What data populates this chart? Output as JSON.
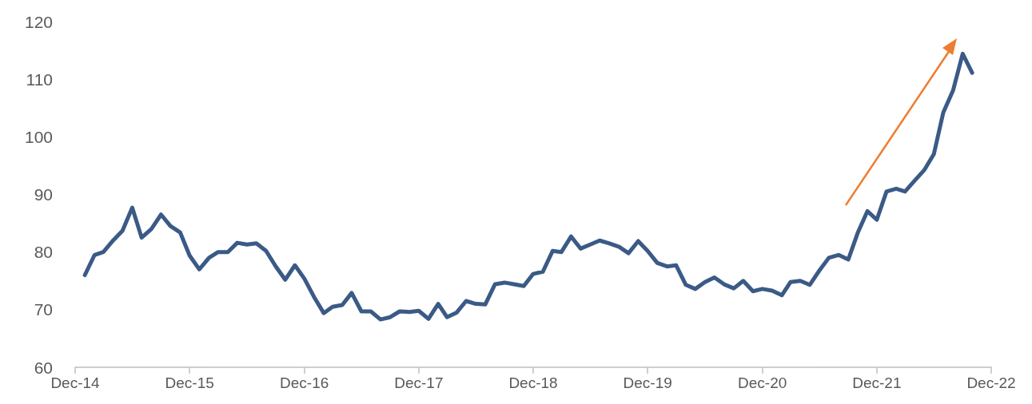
{
  "chart_data": {
    "type": "line",
    "xlim": [
      "2014-12",
      "2022-12"
    ],
    "xticks": [
      {
        "value": "2014-12",
        "label": "Dec-14"
      },
      {
        "value": "2015-12",
        "label": "Dec-15"
      },
      {
        "value": "2016-12",
        "label": "Dec-16"
      },
      {
        "value": "2017-12",
        "label": "Dec-17"
      },
      {
        "value": "2018-12",
        "label": "Dec-18"
      },
      {
        "value": "2019-12",
        "label": "Dec-19"
      },
      {
        "value": "2020-12",
        "label": "Dec-20"
      },
      {
        "value": "2021-12",
        "label": "Dec-21"
      },
      {
        "value": "2022-12",
        "label": "Dec-22"
      }
    ],
    "ylim": [
      60,
      120
    ],
    "yticks": [
      60,
      70,
      80,
      90,
      100,
      110,
      120
    ],
    "grid": false,
    "marker": "none",
    "line_style": "solid",
    "x": [
      "2015-01",
      "2015-02",
      "2015-03",
      "2015-04",
      "2015-05",
      "2015-06",
      "2015-07",
      "2015-08",
      "2015-09",
      "2015-10",
      "2015-11",
      "2015-12",
      "2016-01",
      "2016-02",
      "2016-03",
      "2016-04",
      "2016-05",
      "2016-06",
      "2016-07",
      "2016-08",
      "2016-09",
      "2016-10",
      "2016-11",
      "2016-12",
      "2017-01",
      "2017-02",
      "2017-03",
      "2017-04",
      "2017-05",
      "2017-06",
      "2017-07",
      "2017-08",
      "2017-09",
      "2017-10",
      "2017-11",
      "2017-12",
      "2018-01",
      "2018-02",
      "2018-03",
      "2018-04",
      "2018-05",
      "2018-06",
      "2018-07",
      "2018-08",
      "2018-09",
      "2018-10",
      "2018-11",
      "2018-12",
      "2019-01",
      "2019-02",
      "2019-03",
      "2019-04",
      "2019-05",
      "2019-06",
      "2019-07",
      "2019-08",
      "2019-09",
      "2019-10",
      "2019-11",
      "2019-12",
      "2020-01",
      "2020-02",
      "2020-03",
      "2020-04",
      "2020-05",
      "2020-06",
      "2020-07",
      "2020-08",
      "2020-09",
      "2020-10",
      "2020-11",
      "2020-12",
      "2021-01",
      "2021-02",
      "2021-03",
      "2021-04",
      "2021-05",
      "2021-06",
      "2021-07",
      "2021-08",
      "2021-09",
      "2021-10",
      "2021-11",
      "2021-12",
      "2022-01",
      "2022-02",
      "2022-03",
      "2022-04",
      "2022-05",
      "2022-06",
      "2022-07",
      "2022-08",
      "2022-09",
      "2022-10"
    ],
    "series": [
      {
        "color": "#3b5a86",
        "values": [
          76,
          79.5,
          80,
          82,
          83.7,
          87.7,
          82.5,
          84,
          86.5,
          84.5,
          83.4,
          79.4,
          77,
          79,
          80,
          80,
          81.6,
          81.3,
          81.5,
          80.2,
          77.5,
          75.2,
          77.7,
          75.4,
          72.2,
          69.4,
          70.5,
          70.8,
          72.9,
          69.7,
          69.7,
          68.3,
          68.7,
          69.7,
          69.6,
          69.8,
          68.4,
          71,
          68.7,
          69.5,
          71.5,
          71,
          70.9,
          74.4,
          74.7,
          74.4,
          74.1,
          76.2,
          76.6,
          80.2,
          80,
          82.7,
          80.6,
          81.3,
          82,
          81.5,
          80.9,
          79.8,
          81.9,
          80.2,
          78.1,
          77.5,
          77.7,
          74.3,
          73.6,
          74.8,
          75.6,
          74.4,
          73.7,
          75,
          73.2,
          73.6,
          73.3,
          72.5,
          74.8,
          75,
          74.3,
          76.8,
          79,
          79.5,
          78.7,
          83.3,
          87.1,
          85.6,
          90.5,
          91,
          90.5,
          92.4,
          94.2,
          97,
          104.2,
          108,
          114.4,
          111.1
        ]
      }
    ]
  }
}
